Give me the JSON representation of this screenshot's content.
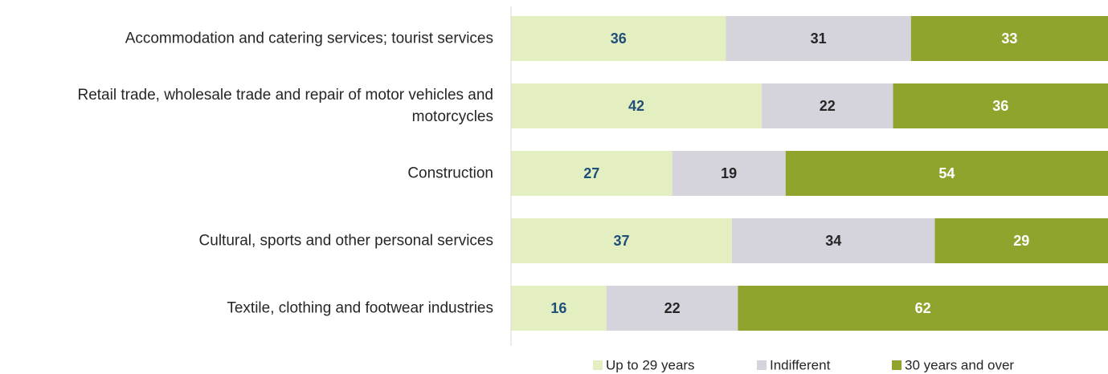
{
  "chart_data": {
    "type": "stacked-bar-horizontal",
    "categories": [
      "Accommodation and catering services; tourist services",
      "Retail trade, wholesale trade and repair of motor vehicles and motorcycles",
      "Construction",
      "Cultural, sports and other personal services",
      "Textile, clothing and footwear industries"
    ],
    "series": [
      {
        "name": "Up to 29 years",
        "color": "#e4efc1",
        "label_color": "#1f4e79",
        "values": [
          36,
          42,
          27,
          37,
          16
        ]
      },
      {
        "name": "Indifferent",
        "color": "#d5d3dc",
        "label_color": "#262626",
        "values": [
          31,
          22,
          19,
          34,
          22
        ]
      },
      {
        "name": "30 years and over",
        "color": "#8fa42c",
        "label_color": "#ffffff",
        "values": [
          33,
          36,
          54,
          29,
          62
        ]
      }
    ],
    "xlim": [
      0,
      100
    ],
    "legend": "bottom"
  }
}
